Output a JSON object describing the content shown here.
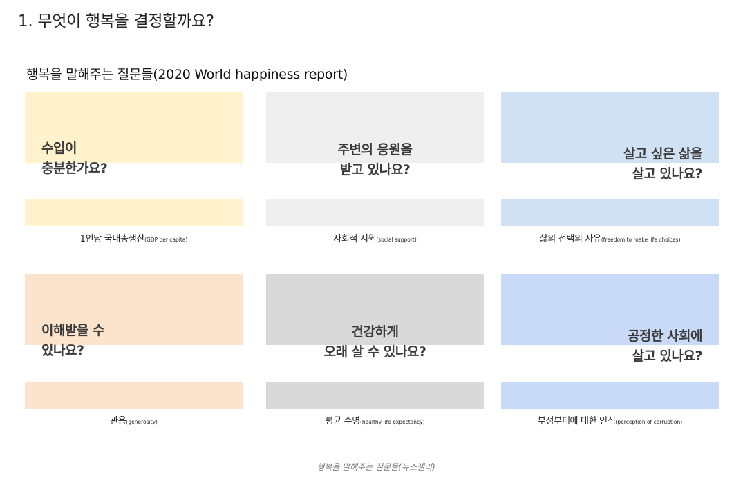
{
  "heading": "1. 무엇이 행복을 결정할까요?",
  "figure": {
    "title": "행복을 말해주는 질문들(2020 World happiness report)",
    "cards": [
      {
        "question_line1": "수입이",
        "question_line2": "충분한가요?",
        "align": "left",
        "caption_ko": "1인당 국내총생산",
        "caption_en": "(GDP per capita)",
        "color": "#fff3cd"
      },
      {
        "question_line1": "주변의 응원을",
        "question_line2": "받고 있나요?",
        "align": "center",
        "caption_ko": "사회적 지원",
        "caption_en": "(social support)",
        "color": "#efefef"
      },
      {
        "question_line1": "살고 싶은 삶을",
        "question_line2": "살고 있나요?",
        "align": "right",
        "caption_ko": "삶의 선택의 자유",
        "caption_en": "(freedom to make life choices)",
        "color": "#cfe1f3"
      },
      {
        "question_line1": "이해받을 수",
        "question_line2": "있나요?",
        "align": "left",
        "caption_ko": "관용",
        "caption_en": "(generosity)",
        "color": "#fce4cc"
      },
      {
        "question_line1": "건강하게",
        "question_line2": "오래 살 수 있나요?",
        "align": "center",
        "caption_ko": "평균 수명",
        "caption_en": "(healthy life expectancy)",
        "color": "#d9d9d9"
      },
      {
        "question_line1": "공정한 사회에",
        "question_line2": "살고 있나요?",
        "align": "right",
        "caption_ko": "부정부패에 대한 인식",
        "caption_en": "(perception of corruption)",
        "color": "#c9daf8"
      }
    ],
    "caption": "행복을 말해주는 질문들(뉴스젤리)"
  }
}
